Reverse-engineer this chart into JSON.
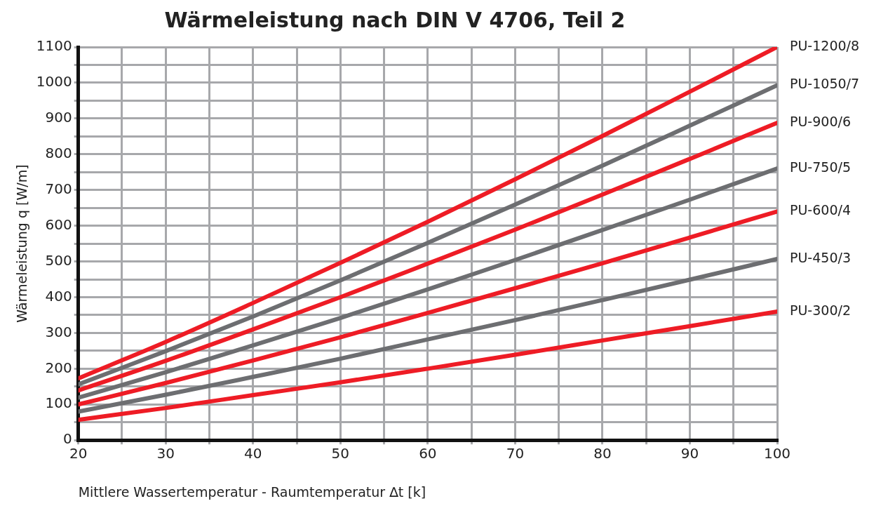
{
  "chart_data": {
    "type": "line",
    "title": "Wärmeleistung nach DIN V 4706, Teil 2",
    "xlabel": "Mittlere Wassertemperatur - Raumtemperatur ∆t [k]",
    "ylabel": "Wärmeleistung q [W/m]",
    "x": [
      20,
      30,
      40,
      50,
      60,
      70,
      80,
      90,
      100
    ],
    "xlim": [
      20,
      100
    ],
    "ylim": [
      0,
      1100
    ],
    "xticks": [
      20,
      {
        "value": 25,
        "label": null
      },
      30,
      {
        "value": 35,
        "label": null
      },
      40,
      {
        "value": 45,
        "label": null
      },
      50,
      {
        "value": 55,
        "label": null
      },
      60,
      {
        "value": 65,
        "label": null
      },
      70,
      {
        "value": 75,
        "label": null
      },
      80,
      {
        "value": 85,
        "label": null
      },
      90,
      {
        "value": 95,
        "label": null
      },
      100
    ],
    "yticks": [
      0,
      {
        "value": 50,
        "label": null
      },
      100,
      {
        "value": 150,
        "label": null
      },
      200,
      {
        "value": 250,
        "label": null
      },
      300,
      {
        "value": 350,
        "label": null
      },
      400,
      {
        "value": 450,
        "label": null
      },
      500,
      {
        "value": 550,
        "label": null
      },
      600,
      {
        "value": 650,
        "label": null
      },
      700,
      {
        "value": 750,
        "label": null
      },
      800,
      {
        "value": 850,
        "label": null
      },
      900,
      {
        "value": 950,
        "label": null
      },
      1000,
      {
        "value": 1050,
        "label": null
      },
      1100
    ],
    "grid": true,
    "legend": false,
    "marker": "none",
    "line_style": "solid",
    "series": [
      {
        "name": "PU-1200/8",
        "color": "#ee1c25",
        "values": [
          173,
          275,
          384,
          496,
          611,
          730,
          851,
          975,
          1100
        ]
      },
      {
        "name": "PU-1050/7",
        "color": "#6d6e71",
        "values": [
          156,
          249,
          346,
          447,
          552,
          659,
          768,
          880,
          993
        ]
      },
      {
        "name": "PU-900/6",
        "color": "#ee1c25",
        "values": [
          139,
          222,
          310,
          400,
          494,
          589,
          687,
          787,
          888
        ]
      },
      {
        "name": "PU-750/5",
        "color": "#6d6e71",
        "values": [
          119,
          190,
          265,
          342,
          422,
          504,
          588,
          673,
          760
        ]
      },
      {
        "name": "PU-600/4",
        "color": "#ee1c25",
        "values": [
          100,
          160,
          223,
          288,
          356,
          425,
          495,
          567,
          640
        ]
      },
      {
        "name": "PU-450/3",
        "color": "#6d6e71",
        "values": [
          80,
          127,
          177,
          228,
          282,
          336,
          392,
          449,
          507
        ]
      },
      {
        "name": "PU-300/2",
        "color": "#ee1c25",
        "values": [
          57,
          90,
          126,
          162,
          200,
          239,
          279,
          319,
          360
        ]
      }
    ]
  }
}
